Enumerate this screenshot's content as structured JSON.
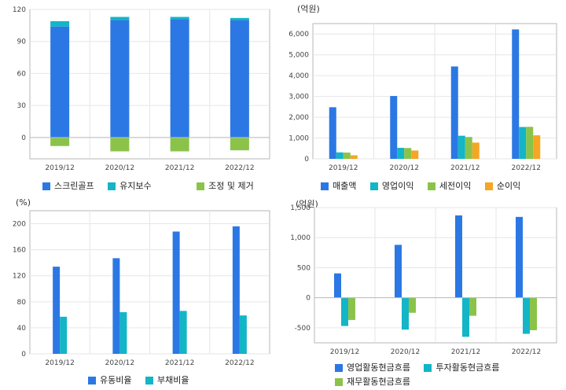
{
  "colors": {
    "blue": "#2b78e4",
    "cyan": "#13b5c6",
    "green": "#8bc34a",
    "orange": "#f5a623",
    "grid": "#e6e6e6",
    "frame": "#b7b7b7"
  },
  "chart_data": [
    {
      "id": "employee-composition",
      "type": "bar",
      "stacked": true,
      "unit_label": "",
      "categories": [
        "2019/12",
        "2020/12",
        "2021/12",
        "2022/12"
      ],
      "ylim": [
        -20,
        120
      ],
      "yticks": [
        0,
        30,
        60,
        90,
        120
      ],
      "series": [
        {
          "name": "스크린골프",
          "color": "#2b78e4",
          "values": [
            104,
            110,
            111,
            110
          ]
        },
        {
          "name": "유지보수",
          "color": "#13b5c6",
          "values": [
            5,
            3,
            2,
            2
          ]
        },
        {
          "name": "조정 및 제거",
          "color": "#8bc34a",
          "values": [
            -8,
            -13,
            -13,
            -12
          ]
        }
      ]
    },
    {
      "id": "income-statement",
      "type": "bar",
      "stacked": false,
      "unit_label": "(억원)",
      "categories": [
        "2019/12",
        "2020/12",
        "2021/12",
        "2022/12"
      ],
      "ylim": [
        0,
        6500
      ],
      "yticks": [
        0,
        1000,
        2000,
        3000,
        4000,
        5000,
        6000
      ],
      "ytick_labels": [
        "0",
        "1,000",
        "2,000",
        "3,000",
        "4,000",
        "5,000",
        "6,000"
      ],
      "series": [
        {
          "name": "매출액",
          "color": "#2b78e4",
          "values": [
            2480,
            3020,
            4440,
            6220
          ]
        },
        {
          "name": "영업이익",
          "color": "#13b5c6",
          "values": [
            310,
            530,
            1110,
            1530
          ]
        },
        {
          "name": "세전이익",
          "color": "#8bc34a",
          "values": [
            300,
            520,
            1050,
            1540
          ]
        },
        {
          "name": "순이익",
          "color": "#f5a623",
          "values": [
            170,
            400,
            780,
            1130
          ]
        }
      ]
    },
    {
      "id": "ratios",
      "type": "bar",
      "stacked": false,
      "unit_label": "(%)",
      "categories": [
        "2019/12",
        "2020/12",
        "2021/12",
        "2022/12"
      ],
      "ylim": [
        0,
        220
      ],
      "yticks": [
        0,
        40,
        80,
        120,
        160,
        200
      ],
      "series": [
        {
          "name": "유동비율",
          "color": "#2b78e4",
          "values": [
            134,
            147,
            188,
            196
          ]
        },
        {
          "name": "부채비율",
          "color": "#13b5c6",
          "values": [
            57,
            64,
            66,
            59
          ]
        }
      ]
    },
    {
      "id": "cash-flows",
      "type": "bar",
      "stacked": false,
      "unit_label": "(억원)",
      "categories": [
        "2019/12",
        "2020/12",
        "2021/12",
        "2022/12"
      ],
      "ylim": [
        -750,
        1500
      ],
      "yticks": [
        -500,
        0,
        500,
        1000,
        1500
      ],
      "ytick_labels": [
        "-500",
        "0",
        "500",
        "1,000",
        "1,500"
      ],
      "series": [
        {
          "name": "영업활동현금흐름",
          "color": "#2b78e4",
          "values": [
            405,
            880,
            1370,
            1345
          ]
        },
        {
          "name": "투자활동현금흐름",
          "color": "#13b5c6",
          "values": [
            -470,
            -530,
            -650,
            -600
          ]
        },
        {
          "name": "재무활동현금흐름",
          "color": "#8bc34a",
          "values": [
            -370,
            -250,
            -300,
            -540
          ]
        }
      ]
    }
  ]
}
